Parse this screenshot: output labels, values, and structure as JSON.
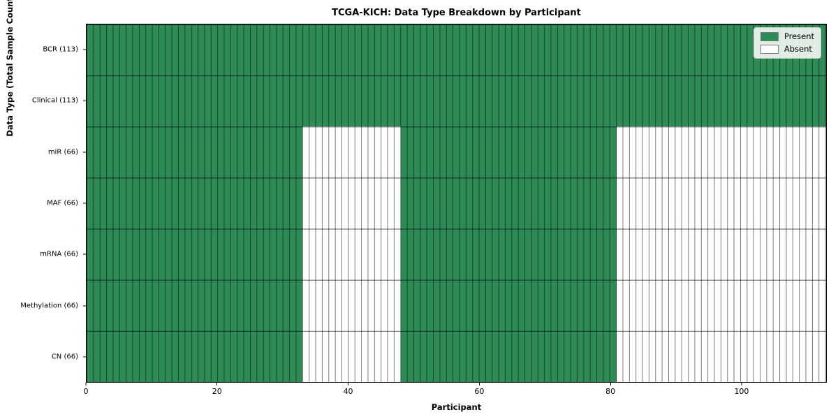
{
  "chart_data": {
    "type": "heatmap",
    "title": "TCGA-KICH: Data Type Breakdown by Participant",
    "xlabel": "Participant",
    "ylabel": "Data Type (Total Sample Count)",
    "x_range": [
      0,
      113
    ],
    "n_participants": 113,
    "x_ticks": [
      "0",
      "20",
      "40",
      "60",
      "80",
      "100"
    ],
    "x_tick_values": [
      0,
      20,
      40,
      60,
      80,
      100
    ],
    "grid": true,
    "legend_position": "upper right",
    "colors": {
      "present": "#2E8B57",
      "absent": "#FFFFFF",
      "cell_edge": "rgba(0,0,0,0.52)",
      "spine": "#000000"
    },
    "legend": [
      {
        "label": "Present",
        "color": "#2E8B57"
      },
      {
        "label": "Absent",
        "color": "#FFFFFF"
      }
    ],
    "rows": [
      {
        "label": "BCR (113)",
        "name": "BCR",
        "total": 113,
        "present_ranges": [
          [
            0,
            113
          ]
        ]
      },
      {
        "label": "Clinical (113)",
        "name": "Clinical",
        "total": 113,
        "present_ranges": [
          [
            0,
            113
          ]
        ]
      },
      {
        "label": "miR (66)",
        "name": "miR",
        "total": 66,
        "present_ranges": [
          [
            0,
            33
          ],
          [
            48,
            81
          ]
        ]
      },
      {
        "label": "MAF (66)",
        "name": "MAF",
        "total": 66,
        "present_ranges": [
          [
            0,
            33
          ],
          [
            48,
            81
          ]
        ]
      },
      {
        "label": "mRNA (66)",
        "name": "mRNA",
        "total": 66,
        "present_ranges": [
          [
            0,
            33
          ],
          [
            48,
            81
          ]
        ]
      },
      {
        "label": "Methylation (66)",
        "name": "Methylation",
        "total": 66,
        "present_ranges": [
          [
            0,
            33
          ],
          [
            48,
            81
          ]
        ]
      },
      {
        "label": "CN (66)",
        "name": "CN",
        "total": 66,
        "present_ranges": [
          [
            0,
            33
          ],
          [
            48,
            81
          ]
        ]
      }
    ]
  }
}
